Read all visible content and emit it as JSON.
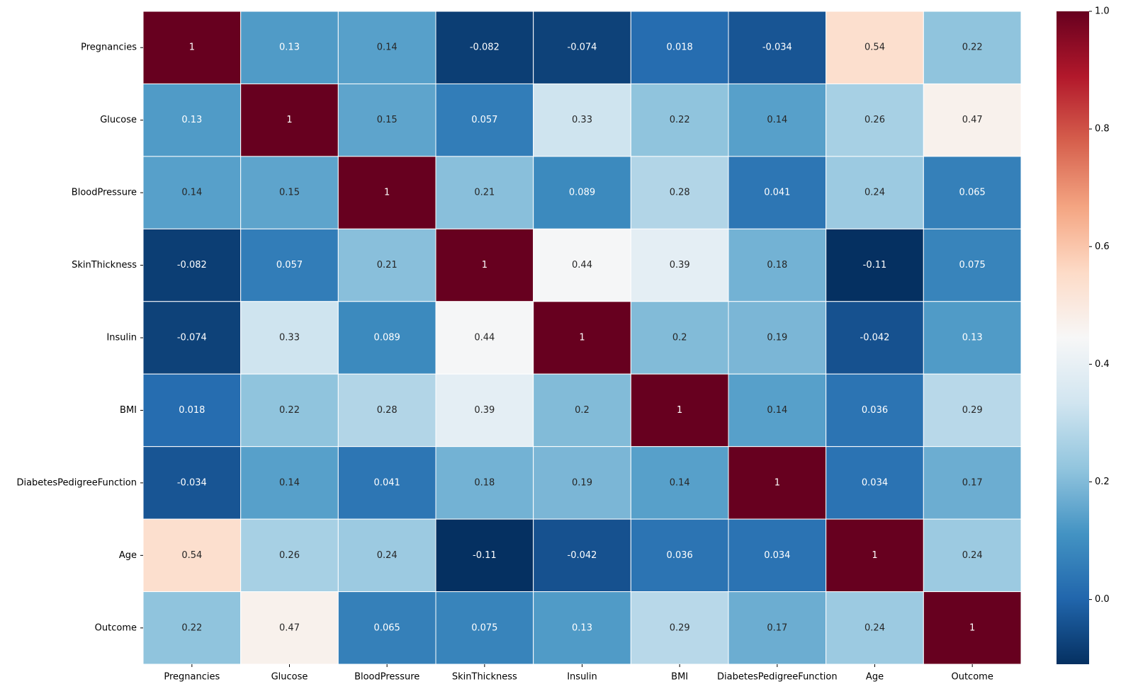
{
  "chart_data": {
    "type": "heatmap",
    "title": "",
    "xlabel": "",
    "ylabel": "",
    "x_categories": [
      "Pregnancies",
      "Glucose",
      "BloodPressure",
      "SkinThickness",
      "Insulin",
      "BMI",
      "DiabetesPedigreeFunction",
      "Age",
      "Outcome"
    ],
    "y_categories": [
      "Pregnancies",
      "Glucose",
      "BloodPressure",
      "SkinThickness",
      "Insulin",
      "BMI",
      "DiabetesPedigreeFunction",
      "Age",
      "Outcome"
    ],
    "values": [
      [
        1,
        0.13,
        0.14,
        -0.082,
        -0.074,
        0.018,
        -0.034,
        0.54,
        0.22
      ],
      [
        0.13,
        1,
        0.15,
        0.057,
        0.33,
        0.22,
        0.14,
        0.26,
        0.47
      ],
      [
        0.14,
        0.15,
        1,
        0.21,
        0.089,
        0.28,
        0.041,
        0.24,
        0.065
      ],
      [
        -0.082,
        0.057,
        0.21,
        1,
        0.44,
        0.39,
        0.18,
        -0.11,
        0.075
      ],
      [
        -0.074,
        0.33,
        0.089,
        0.44,
        1,
        0.2,
        0.19,
        -0.042,
        0.13
      ],
      [
        0.018,
        0.22,
        0.28,
        0.39,
        0.2,
        1,
        0.14,
        0.036,
        0.29
      ],
      [
        -0.034,
        0.14,
        0.041,
        0.18,
        0.19,
        0.14,
        1,
        0.034,
        0.17
      ],
      [
        0.54,
        0.26,
        0.24,
        -0.11,
        -0.042,
        0.036,
        0.034,
        1,
        0.24
      ],
      [
        0.22,
        0.47,
        0.065,
        0.075,
        0.13,
        0.29,
        0.17,
        0.24,
        1
      ]
    ],
    "colormap": "RdBu_r",
    "vmin": -0.11,
    "vmax": 1.0,
    "colorbar_ticks": [
      "0.0",
      "0.2",
      "0.4",
      "0.6",
      "0.8",
      "1.0"
    ],
    "colorbar_tick_values": [
      0.0,
      0.2,
      0.4,
      0.6,
      0.8,
      1.0
    ],
    "cell_border_color": "#ffffff",
    "annotated": true
  }
}
